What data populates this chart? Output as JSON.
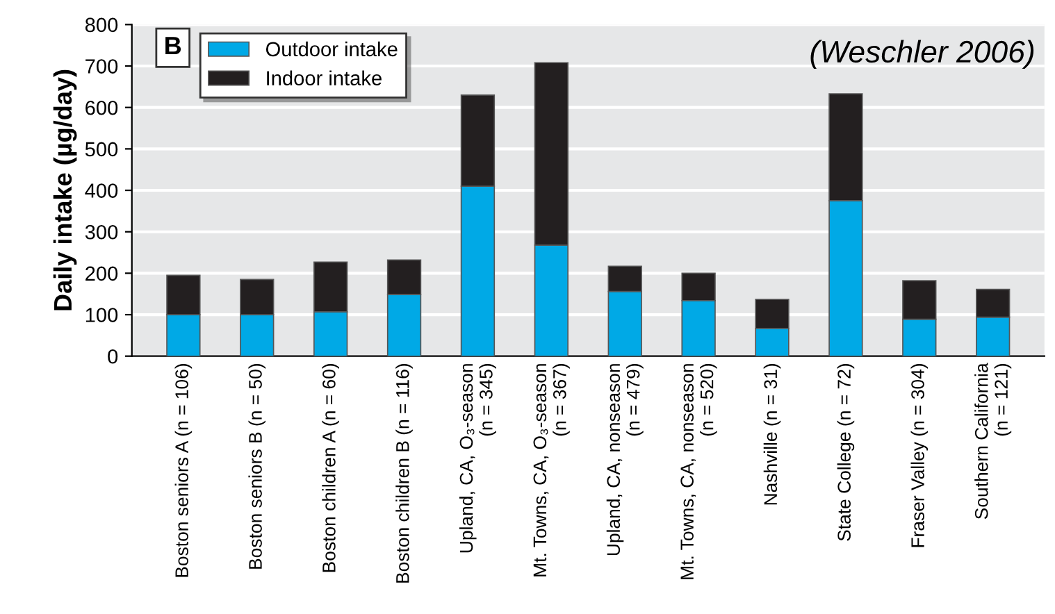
{
  "chart_data": {
    "type": "bar",
    "stacked": true,
    "ylabel": "Daily intake (µg/day)",
    "categories": [
      "Boston seniors A (n = 106)",
      "Boston seniors B (n = 50)",
      "Boston children A (n = 60)",
      "Boston children B (n = 116)",
      "Upland, CA, O₃-season\n(n = 345)",
      "Mt. Towns, CA, O₃-season\n(n = 367)",
      "Upland, CA, nonseason\n(n = 479)",
      "Mt. Towns, CA, nonseason\n(n = 520)",
      "Nashville (n = 31)",
      "State College (n = 72)",
      "Fraser Valley (n = 304)",
      "Southern California\n(n = 121)"
    ],
    "series": [
      {
        "name": "Outdoor intake",
        "color": "#00a9e6",
        "values": [
          100,
          100,
          107,
          149,
          410,
          268,
          156,
          134,
          67,
          375,
          89,
          94
        ]
      },
      {
        "name": "Indoor intake",
        "color": "#231f20",
        "values": [
          95,
          85,
          120,
          83,
          220,
          440,
          61,
          66,
          70,
          258,
          93,
          67
        ]
      }
    ],
    "ylim": [
      0,
      800
    ],
    "yticks": [
      0,
      100,
      200,
      300,
      400,
      500,
      600,
      700,
      800
    ],
    "grid": "y",
    "legend": "top left",
    "annotations": [
      "B",
      "(Weschler 2006)"
    ]
  }
}
